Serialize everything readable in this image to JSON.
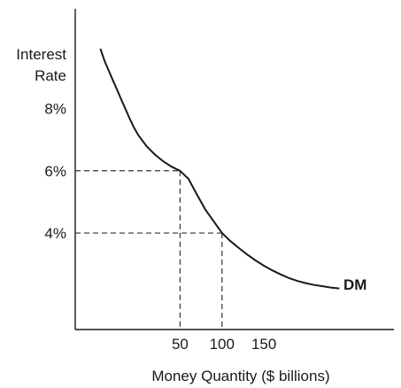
{
  "chart_data": {
    "type": "line",
    "xlabel": "Money Quantity ($ billions)",
    "ylabel_line1": "Interest",
    "ylabel_line2": "Rate",
    "x_ticks": [
      {
        "value": 50,
        "label": "50"
      },
      {
        "value": 100,
        "label": "100"
      },
      {
        "value": 150,
        "label": "150"
      }
    ],
    "y_ticks": [
      {
        "value": 4,
        "label": "4%"
      },
      {
        "value": 6,
        "label": "6%"
      },
      {
        "value": 8,
        "label": "8%"
      }
    ],
    "xlim": [
      -75,
      305
    ],
    "ylim": [
      0.9,
      11.2
    ],
    "grid": false,
    "series": [
      {
        "name": "DM",
        "x": [
          -45,
          -40,
          -35,
          -30,
          -25,
          -20,
          -15,
          -10,
          -5,
          0,
          10,
          20,
          30,
          40,
          50,
          60,
          70,
          80,
          90,
          100,
          110,
          120,
          130,
          140,
          150,
          160,
          170,
          180,
          190,
          200,
          210,
          220,
          230,
          240
        ],
        "y": [
          9.92,
          9.52,
          9.21,
          8.9,
          8.59,
          8.28,
          7.98,
          7.67,
          7.39,
          7.15,
          6.79,
          6.52,
          6.3,
          6.13,
          6.0,
          5.74,
          5.24,
          4.76,
          4.38,
          4.0,
          3.74,
          3.52,
          3.31,
          3.12,
          2.95,
          2.8,
          2.67,
          2.55,
          2.46,
          2.39,
          2.33,
          2.29,
          2.25,
          2.22
        ]
      }
    ],
    "reference_points": [
      {
        "x": 50,
        "y": 6
      },
      {
        "x": 100,
        "y": 4
      }
    ],
    "style": {
      "line_color": "#1a1a1a",
      "dash_color": "#333333"
    }
  }
}
